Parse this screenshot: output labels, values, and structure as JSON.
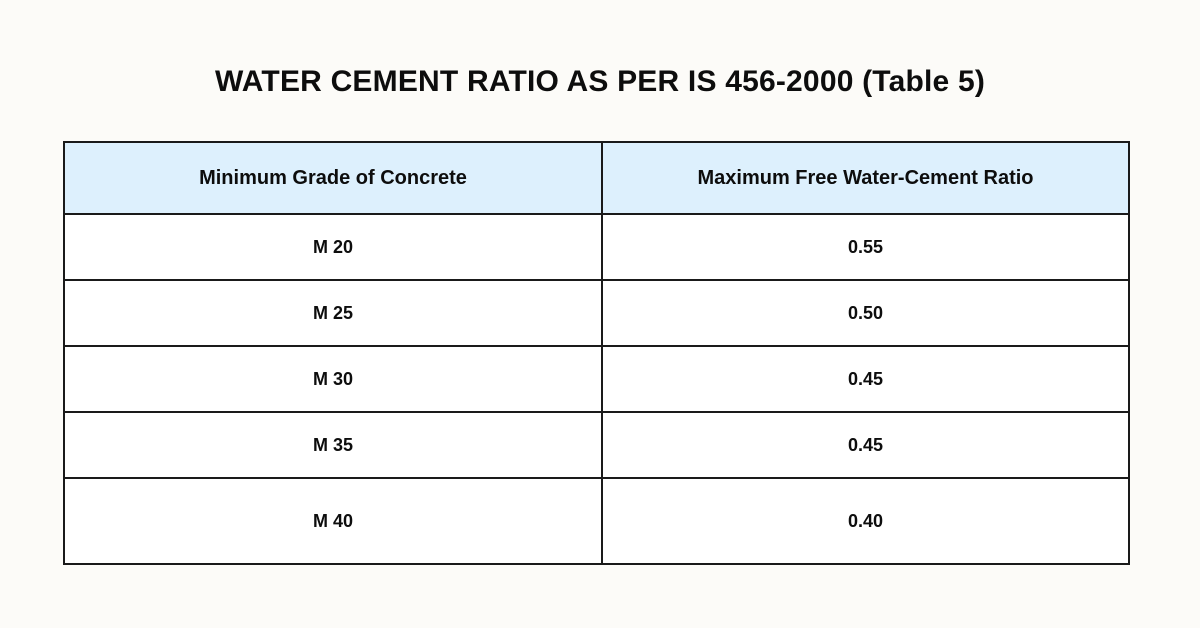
{
  "title": "WATER CEMENT RATIO AS PER IS 456-2000 (Table 5)",
  "table": {
    "headers": [
      "Minimum Grade of Concrete",
      "Maximum Free Water-Cement Ratio"
    ],
    "rows": [
      [
        "M 20",
        "0.55"
      ],
      [
        "M 25",
        "0.50"
      ],
      [
        "M 30",
        "0.45"
      ],
      [
        "M 35",
        "0.45"
      ],
      [
        "M 40",
        "0.40"
      ]
    ]
  },
  "colors": {
    "background": "#fcfbf8",
    "header_fill": "#ddf0fd",
    "border": "#1a1a1a",
    "text": "#0d0d0d"
  }
}
